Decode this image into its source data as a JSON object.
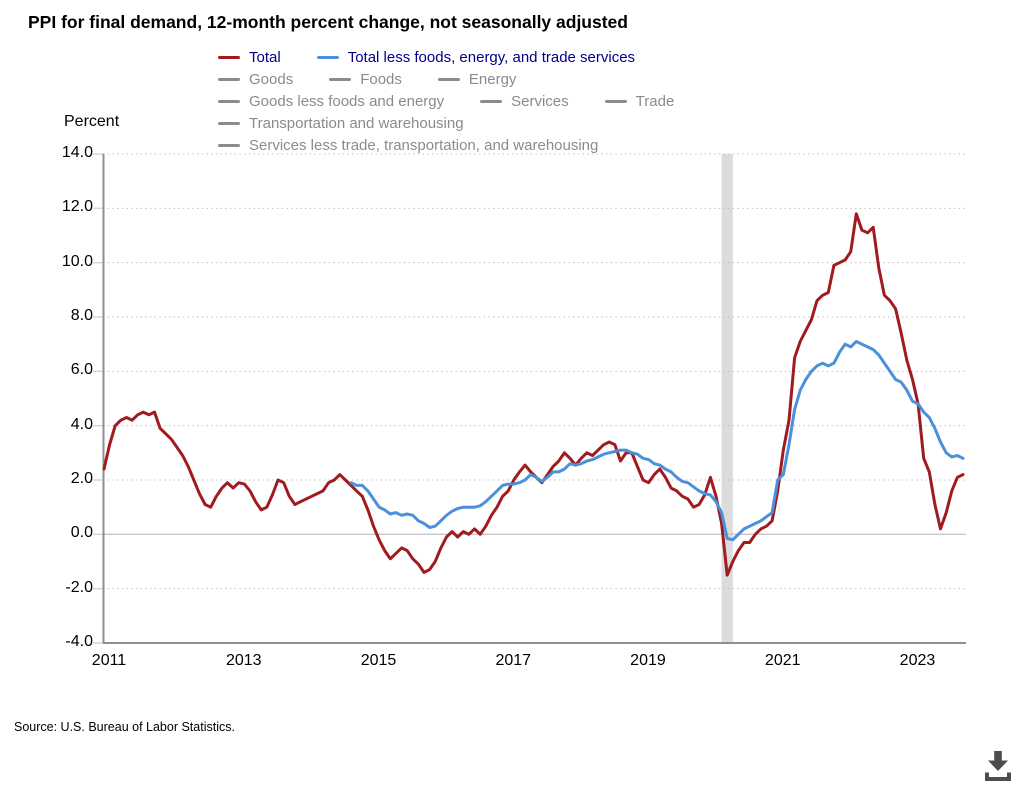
{
  "title": "PPI for final demand, 12-month percent change, not seasonally adjusted",
  "y_axis_label": "Percent",
  "source": "Source: U.S. Bureau of Labor Statistics.",
  "colors": {
    "total_line": "#9F1B20",
    "core_line": "#4A90DB",
    "legend_active_text": "#00008B",
    "legend_inactive": "#8B8B8B",
    "grid_dotted": "#C0C0C0",
    "zero_line": "#C6C6C6",
    "axis_line": "#8F8F8F",
    "tick_stub": "#C7D7E8",
    "recession_band": "#DCDCDC",
    "download_icon": "#4D4D4D"
  },
  "legend": {
    "rows": [
      [
        {
          "label": "Total",
          "swatch": "#9F1B20",
          "active": true
        },
        {
          "label": "Total less foods, energy, and trade services",
          "swatch": "#4A90DB",
          "active": true
        }
      ],
      [
        {
          "label": "Goods",
          "swatch": "#8B8B8B",
          "active": false
        },
        {
          "label": "Foods",
          "swatch": "#8B8B8B",
          "active": false
        },
        {
          "label": "Energy",
          "swatch": "#8B8B8B",
          "active": false
        }
      ],
      [
        {
          "label": "Goods less foods and energy",
          "swatch": "#8B8B8B",
          "active": false
        },
        {
          "label": "Services",
          "swatch": "#8B8B8B",
          "active": false
        },
        {
          "label": "Trade",
          "swatch": "#8B8B8B",
          "active": false
        }
      ],
      [
        {
          "label": "Transportation and warehousing",
          "swatch": "#8B8B8B",
          "active": false
        }
      ],
      [
        {
          "label": "Services less trade, transportation, and warehousing",
          "swatch": "#8B8B8B",
          "active": false
        }
      ]
    ]
  },
  "chart_data": {
    "type": "line",
    "title": "PPI for final demand, 12-month percent change, not seasonally adjusted",
    "ylabel": "Percent",
    "ylim": [
      -4.0,
      14.0
    ],
    "y_ticks": [
      14,
      12,
      10,
      8,
      6,
      4,
      2,
      0,
      -2,
      -4
    ],
    "x_start": "2011-01",
    "x_end": "2023-10",
    "x_tick_years": [
      2011,
      2013,
      2015,
      2017,
      2019,
      2021,
      2023
    ],
    "grid": "dotted-horizontal",
    "legend_position": "top",
    "recession_band": {
      "start": "2020-03",
      "end": "2020-05"
    },
    "series": [
      {
        "name": "Total",
        "color": "#9F1B20",
        "start_month": "2011-01",
        "values": [
          2.4,
          3.3,
          4.0,
          4.2,
          4.3,
          4.2,
          4.4,
          4.5,
          4.4,
          4.5,
          3.9,
          3.7,
          3.5,
          3.2,
          2.9,
          2.5,
          2.0,
          1.5,
          1.1,
          1.0,
          1.4,
          1.7,
          1.9,
          1.7,
          1.9,
          1.85,
          1.6,
          1.2,
          0.9,
          1.0,
          1.45,
          2.0,
          1.9,
          1.4,
          1.1,
          1.2,
          1.3,
          1.4,
          1.5,
          1.6,
          1.9,
          2.0,
          2.2,
          2.0,
          1.8,
          1.6,
          1.4,
          0.9,
          0.3,
          -0.2,
          -0.6,
          -0.9,
          -0.7,
          -0.5,
          -0.6,
          -0.9,
          -1.1,
          -1.4,
          -1.3,
          -1.0,
          -0.5,
          -0.1,
          0.1,
          -0.1,
          0.1,
          0.0,
          0.2,
          0.0,
          0.3,
          0.7,
          1.0,
          1.4,
          1.6,
          2.0,
          2.3,
          2.55,
          2.3,
          2.1,
          1.9,
          2.2,
          2.5,
          2.7,
          3.0,
          2.8,
          2.55,
          2.8,
          3.0,
          2.9,
          3.1,
          3.3,
          3.4,
          3.3,
          2.7,
          3.0,
          3.0,
          2.5,
          2.0,
          1.9,
          2.2,
          2.4,
          2.1,
          1.7,
          1.6,
          1.4,
          1.3,
          1.0,
          1.1,
          1.45,
          2.1,
          1.4,
          0.4,
          -1.5,
          -1.0,
          -0.6,
          -0.3,
          -0.3,
          0.0,
          0.2,
          0.3,
          0.5,
          1.6,
          3.1,
          4.2,
          6.5,
          7.1,
          7.5,
          7.9,
          8.6,
          8.8,
          8.9,
          9.9,
          10.0,
          10.1,
          10.4,
          11.8,
          11.2,
          11.1,
          11.3,
          9.8,
          8.8,
          8.6,
          8.3,
          7.4,
          6.4,
          5.7,
          4.8,
          2.8,
          2.3,
          1.1,
          0.2,
          0.8,
          1.6,
          2.1,
          2.2
        ]
      },
      {
        "name": "Total less foods, energy, and trade services",
        "color": "#4A90DB",
        "start_month": "2014-09",
        "values": [
          1.9,
          1.8,
          1.8,
          1.6,
          1.3,
          1.0,
          0.9,
          0.75,
          0.8,
          0.7,
          0.75,
          0.7,
          0.5,
          0.4,
          0.25,
          0.3,
          0.5,
          0.7,
          0.85,
          0.95,
          1.0,
          1.0,
          1.0,
          1.05,
          1.2,
          1.4,
          1.6,
          1.8,
          1.85,
          1.85,
          1.9,
          2.0,
          2.2,
          2.1,
          1.95,
          2.1,
          2.3,
          2.3,
          2.4,
          2.6,
          2.55,
          2.6,
          2.7,
          2.75,
          2.85,
          2.95,
          3.0,
          3.05,
          3.1,
          3.1,
          3.0,
          2.95,
          2.8,
          2.75,
          2.6,
          2.55,
          2.4,
          2.3,
          2.1,
          1.95,
          1.9,
          1.75,
          1.6,
          1.5,
          1.45,
          1.2,
          0.8,
          -0.15,
          -0.2,
          0.0,
          0.2,
          0.3,
          0.4,
          0.5,
          0.65,
          0.8,
          2.0,
          2.2,
          3.3,
          4.6,
          5.3,
          5.7,
          6.0,
          6.2,
          6.3,
          6.2,
          6.3,
          6.7,
          7.0,
          6.9,
          7.1,
          7.0,
          6.9,
          6.8,
          6.6,
          6.3,
          6.0,
          5.7,
          5.6,
          5.3,
          4.9,
          4.8,
          4.5,
          4.3,
          3.9,
          3.4,
          3.0,
          2.85,
          2.9,
          2.8
        ]
      }
    ]
  }
}
